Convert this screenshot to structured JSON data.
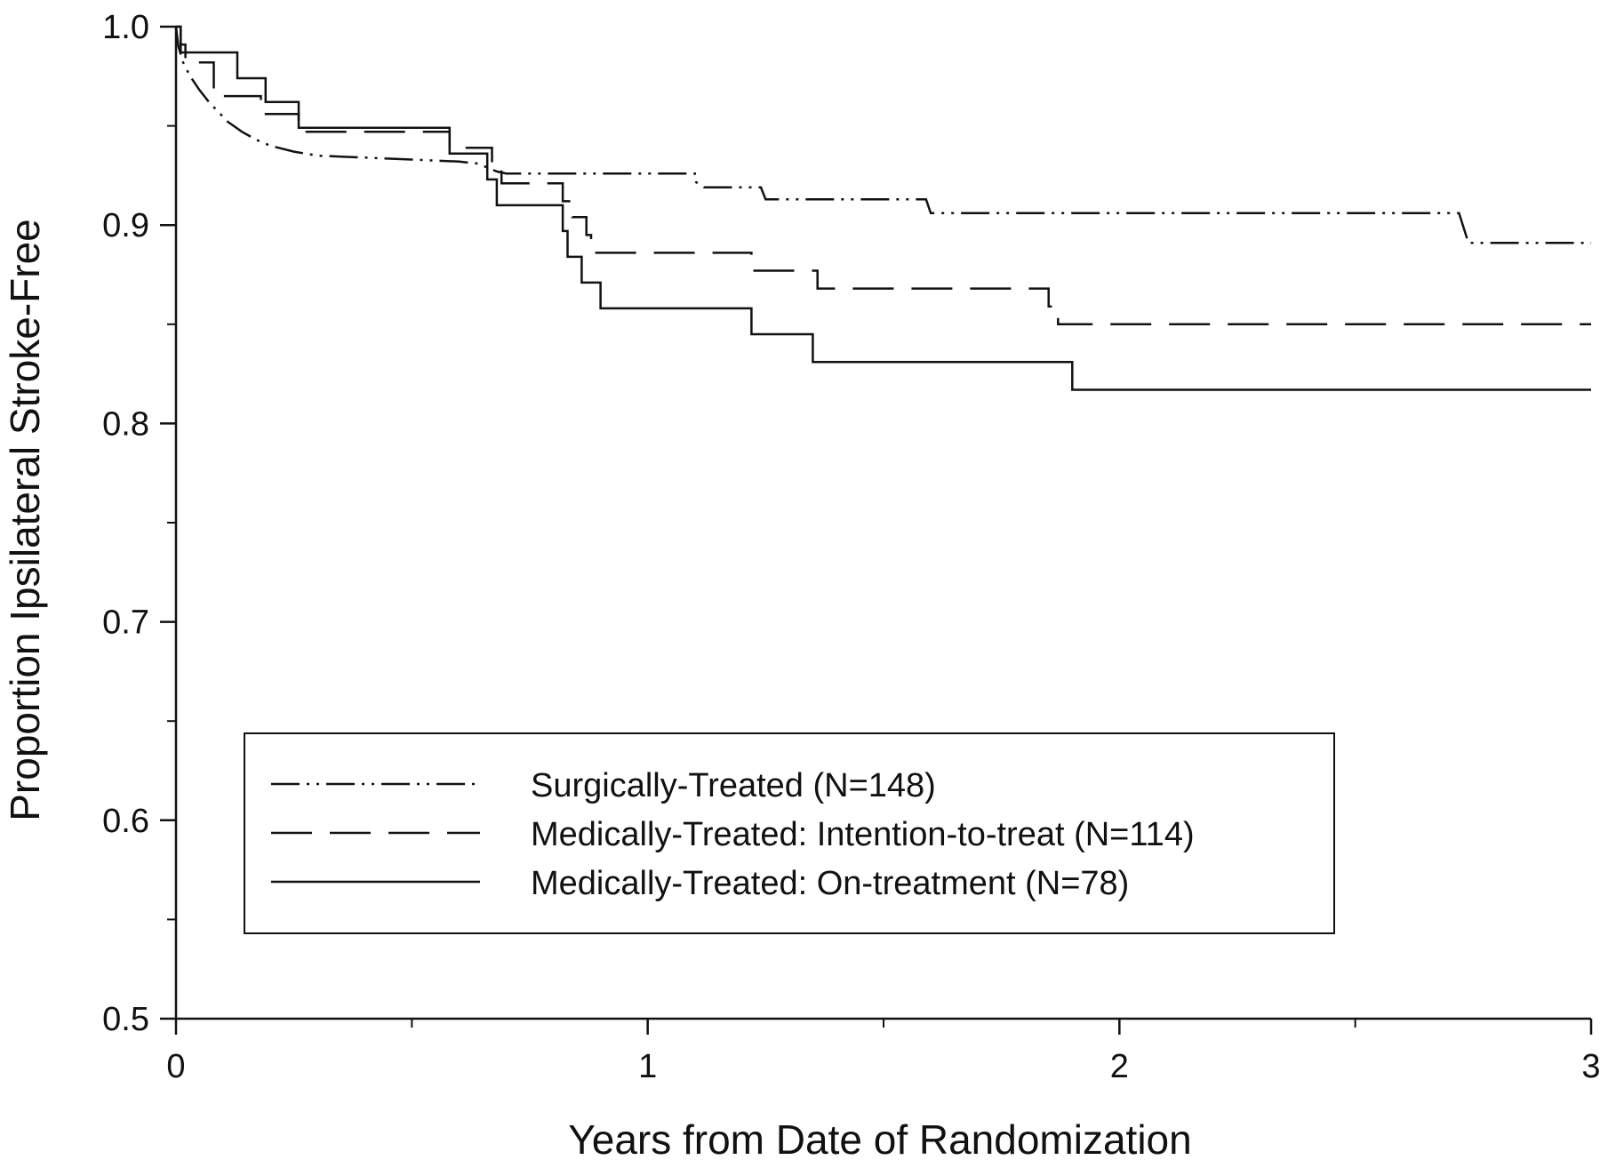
{
  "chart_data": {
    "type": "line",
    "subtype": "kaplan-meier step curves",
    "xlabel": "Years from Date of Randomization",
    "ylabel": "Proportion Ipsilateral Stroke-Free",
    "xlim": [
      0,
      3
    ],
    "ylim": [
      0.5,
      1.0
    ],
    "x_ticks": [
      0,
      1,
      2,
      3
    ],
    "x_tick_labels": [
      "0",
      "1",
      "2",
      "3"
    ],
    "x_minor_ticks": [
      0.5,
      1.5,
      2.5
    ],
    "y_ticks": [
      0.5,
      0.6,
      0.7,
      0.8,
      0.9,
      1.0
    ],
    "y_tick_labels": [
      "0.5",
      "0.6",
      "0.7",
      "0.8",
      "0.9",
      "1.0"
    ],
    "y_minor_ticks": [
      0.55,
      0.65,
      0.75,
      0.85,
      0.95
    ],
    "grid": false,
    "legend_position": "bottom-center",
    "series": [
      {
        "name": "Surgically-Treated (N=148)",
        "line_style": "dash-dot-dot",
        "color": "#111111",
        "points": [
          [
            0,
            1.0
          ],
          [
            0.005,
            0.99
          ],
          [
            0.015,
            0.982
          ],
          [
            0.03,
            0.975
          ],
          [
            0.05,
            0.968
          ],
          [
            0.07,
            0.962
          ],
          [
            0.09,
            0.957
          ],
          [
            0.11,
            0.952
          ],
          [
            0.14,
            0.947
          ],
          [
            0.17,
            0.943
          ],
          [
            0.2,
            0.94
          ],
          [
            0.25,
            0.937
          ],
          [
            0.3,
            0.935
          ],
          [
            0.4,
            0.934
          ],
          [
            0.5,
            0.933
          ],
          [
            0.6,
            0.932
          ],
          [
            0.64,
            0.931
          ],
          [
            0.66,
            0.929
          ],
          [
            0.68,
            0.927
          ],
          [
            0.7,
            0.926
          ],
          [
            1.1,
            0.926
          ],
          [
            1.1,
            0.922
          ],
          [
            1.12,
            0.919
          ],
          [
            1.24,
            0.919
          ],
          [
            1.25,
            0.913
          ],
          [
            1.59,
            0.913
          ],
          [
            1.6,
            0.906
          ],
          [
            2.72,
            0.906
          ],
          [
            2.74,
            0.891
          ],
          [
            3.0,
            0.891
          ]
        ]
      },
      {
        "name": "Medically-Treated: Intention-to-treat (N=114)",
        "line_style": "long-dash",
        "color": "#111111",
        "points": [
          [
            0,
            1.0
          ],
          [
            0.01,
            1.0
          ],
          [
            0.01,
            0.991
          ],
          [
            0.02,
            0.991
          ],
          [
            0.02,
            0.982
          ],
          [
            0.08,
            0.982
          ],
          [
            0.08,
            0.965
          ],
          [
            0.18,
            0.965
          ],
          [
            0.18,
            0.956
          ],
          [
            0.26,
            0.956
          ],
          [
            0.26,
            0.947
          ],
          [
            0.58,
            0.947
          ],
          [
            0.58,
            0.939
          ],
          [
            0.67,
            0.939
          ],
          [
            0.67,
            0.93
          ],
          [
            0.69,
            0.93
          ],
          [
            0.69,
            0.921
          ],
          [
            0.82,
            0.921
          ],
          [
            0.82,
            0.912
          ],
          [
            0.84,
            0.912
          ],
          [
            0.84,
            0.904
          ],
          [
            0.87,
            0.904
          ],
          [
            0.87,
            0.895
          ],
          [
            0.88,
            0.895
          ],
          [
            0.88,
            0.886
          ],
          [
            1.22,
            0.886
          ],
          [
            1.22,
            0.877
          ],
          [
            1.36,
            0.877
          ],
          [
            1.36,
            0.868
          ],
          [
            1.85,
            0.868
          ],
          [
            1.85,
            0.859
          ],
          [
            1.87,
            0.859
          ],
          [
            1.87,
            0.85
          ],
          [
            3.0,
            0.85
          ]
        ]
      },
      {
        "name": "Medically-Treated: On-treatment (N=78)",
        "line_style": "solid",
        "color": "#111111",
        "points": [
          [
            0,
            1.0
          ],
          [
            0.01,
            1.0
          ],
          [
            0.01,
            0.987
          ],
          [
            0.13,
            0.987
          ],
          [
            0.13,
            0.974
          ],
          [
            0.19,
            0.974
          ],
          [
            0.19,
            0.962
          ],
          [
            0.26,
            0.962
          ],
          [
            0.26,
            0.949
          ],
          [
            0.58,
            0.949
          ],
          [
            0.58,
            0.936
          ],
          [
            0.66,
            0.936
          ],
          [
            0.66,
            0.923
          ],
          [
            0.68,
            0.923
          ],
          [
            0.68,
            0.91
          ],
          [
            0.82,
            0.91
          ],
          [
            0.82,
            0.897
          ],
          [
            0.83,
            0.897
          ],
          [
            0.83,
            0.884
          ],
          [
            0.86,
            0.884
          ],
          [
            0.86,
            0.871
          ],
          [
            0.9,
            0.871
          ],
          [
            0.9,
            0.858
          ],
          [
            1.22,
            0.858
          ],
          [
            1.22,
            0.845
          ],
          [
            1.35,
            0.845
          ],
          [
            1.35,
            0.831
          ],
          [
            1.9,
            0.831
          ],
          [
            1.9,
            0.817
          ],
          [
            3.0,
            0.817
          ]
        ]
      }
    ]
  }
}
